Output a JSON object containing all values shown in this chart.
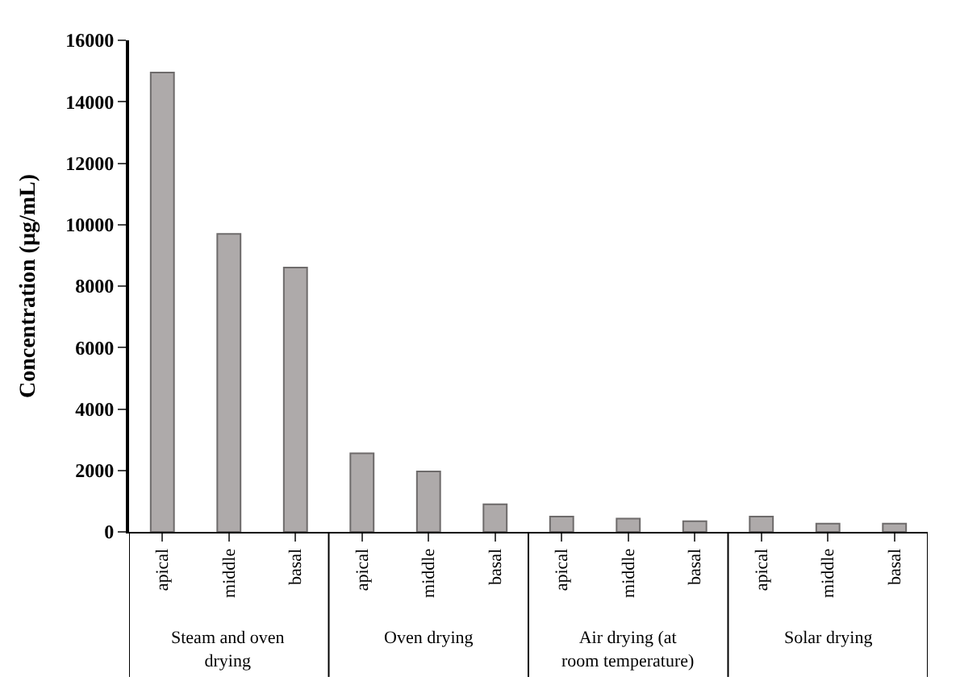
{
  "chart_data": {
    "type": "bar",
    "ylabel": "Concentration (µg/mL)",
    "categories": [
      "apical",
      "middle",
      "basal",
      "apical",
      "middle",
      "basal",
      "apical",
      "middle",
      "basal",
      "apical",
      "middle",
      "basal"
    ],
    "values": [
      14950,
      9700,
      8600,
      2560,
      1970,
      900,
      500,
      430,
      350,
      500,
      270,
      270
    ],
    "color": "#aeaaaa",
    "ylim": [
      0,
      16000
    ],
    "yticks": [
      0,
      2000,
      4000,
      6000,
      8000,
      10000,
      12000,
      14000,
      16000
    ],
    "annotations": [
      "Steam and oven drying",
      "Oven drying",
      "Air drying (at room temperature)",
      "Solar drying"
    ]
  }
}
